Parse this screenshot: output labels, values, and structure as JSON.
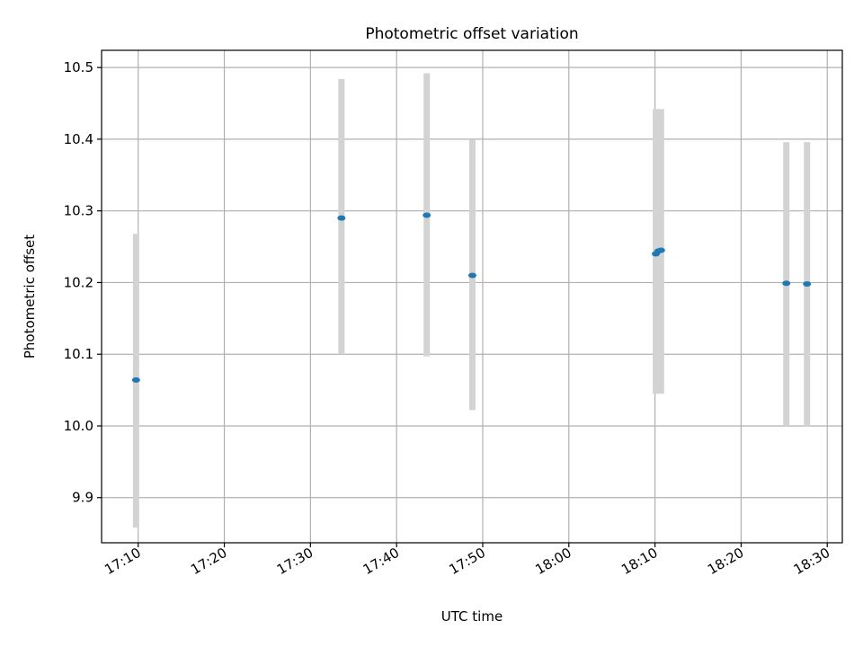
{
  "chart_data": {
    "type": "scatter",
    "title": "Photometric offset variation",
    "xlabel": "UTC time",
    "ylabel": "Photometric offset",
    "x_ticks": [
      "17:10",
      "17:20",
      "17:30",
      "17:40",
      "17:50",
      "18:00",
      "18:10",
      "18:20",
      "18:30"
    ],
    "y_ticks": [
      "9.9",
      "10.0",
      "10.1",
      "10.2",
      "10.3",
      "10.4",
      "10.5"
    ],
    "xlim": [
      "17:05:45",
      "18:31:45"
    ],
    "ylim": [
      9.837,
      10.524
    ],
    "grid": true,
    "colors": {
      "points": "#1f77b4",
      "errorbars": "#d3d3d3",
      "grid": "#b0b0b0"
    },
    "series": [
      {
        "points": [
          {
            "x": "17:09:45",
            "y": 10.064,
            "err_low": 9.858,
            "err_high": 10.268
          },
          {
            "x": "17:33:36",
            "y": 10.29,
            "err_low": 10.1,
            "err_high": 10.484
          },
          {
            "x": "17:43:30",
            "y": 10.294,
            "err_low": 10.097,
            "err_high": 10.492
          },
          {
            "x": "17:48:48",
            "y": 10.21,
            "err_low": 10.022,
            "err_high": 10.399
          },
          {
            "x": "18:10:06",
            "y": 10.24,
            "err_low": 10.045,
            "err_high": 10.442
          },
          {
            "x": "18:10:24",
            "y": 10.244,
            "err_low": 10.045,
            "err_high": 10.442
          },
          {
            "x": "18:10:42",
            "y": 10.245,
            "err_low": 10.045,
            "err_high": 10.442
          },
          {
            "x": "18:25:15",
            "y": 10.199,
            "err_low": 10.0,
            "err_high": 10.396
          },
          {
            "x": "18:27:39",
            "y": 10.198,
            "err_low": 10.0,
            "err_high": 10.396
          }
        ]
      }
    ]
  }
}
